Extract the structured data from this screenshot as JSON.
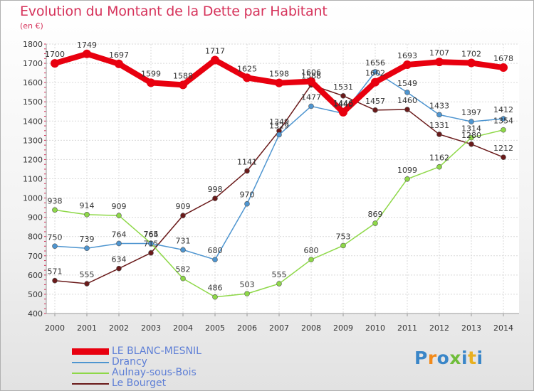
{
  "title": "Evolution du Montant de la Dette par Habitant",
  "unit_label": "(en €)",
  "logo_text": "Proxiti",
  "chart_data": {
    "type": "line",
    "title": "Evolution du Montant de la Dette par Habitant",
    "ylabel": "(en €)",
    "x": [
      "2000",
      "2001",
      "2002",
      "2003",
      "2004",
      "2005",
      "2006",
      "2007",
      "2008",
      "2009",
      "2010",
      "2011",
      "2012",
      "2013",
      "2014"
    ],
    "ylim": [
      400,
      1800
    ],
    "yticks": [
      400,
      500,
      600,
      700,
      800,
      900,
      1000,
      1100,
      1200,
      1300,
      1400,
      1500,
      1600,
      1700,
      1800
    ],
    "grid": true,
    "legend_position": "bottom-left",
    "series": [
      {
        "name": "LE BLANC-MESNIL",
        "color": "#e8000f",
        "values": [
          1700,
          1749,
          1697,
          1599,
          1588,
          1717,
          1625,
          1598,
          1606,
          1446,
          1602,
          1693,
          1707,
          1702,
          1678
        ]
      },
      {
        "name": "Drancy",
        "color": "#4e95d0",
        "values": [
          750,
          739,
          764,
          764,
          731,
          680,
          970,
          1329,
          1477,
          1440,
          1656,
          1549,
          1433,
          1397,
          1412
        ]
      },
      {
        "name": "Aulnay-sous-Bois",
        "color": "#8ed848",
        "values": [
          938,
          914,
          909,
          765,
          582,
          486,
          503,
          555,
          680,
          753,
          869,
          1099,
          1162,
          1314,
          1354
        ]
      },
      {
        "name": "Le Bourget",
        "color": "#6a1a1a",
        "values": [
          571,
          555,
          634,
          715,
          909,
          998,
          1141,
          1349,
          1588,
          1531,
          1457,
          1460,
          1331,
          1280,
          1212
        ]
      }
    ]
  }
}
